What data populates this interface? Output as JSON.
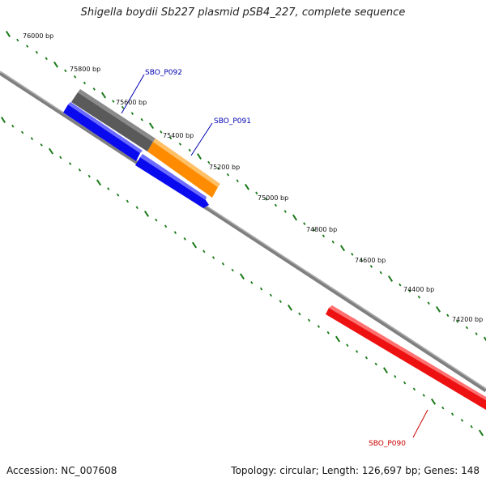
{
  "title": "Shigella boydii Sb227 plasmid pSB4_227, complete sequence",
  "footer": {
    "accession": "Accession: NC_007608",
    "summary": "Topology: circular; Length: 126,697 bp; Genes: 148"
  },
  "ticks": [
    "76000 bp",
    "75800 bp",
    "75600 bp",
    "75400 bp",
    "75200 bp",
    "75000 bp",
    "74800 bp",
    "74600 bp",
    "74400 bp",
    "74200 bp"
  ],
  "genes": [
    {
      "name": "SBO_P092",
      "color": "#0000b0"
    },
    {
      "name": "SBO_P091",
      "color": "#0000b0"
    },
    {
      "name": "SBO_P090",
      "color": "#cc0000"
    }
  ],
  "colors": {
    "backbone": "#7f7f7f",
    "tick": "#1a7a1a",
    "gray_feature": "#5a5a5a",
    "orange_feature": "#ff8c00",
    "blue_feature": "#0a0aee",
    "red_feature": "#ee1111"
  }
}
